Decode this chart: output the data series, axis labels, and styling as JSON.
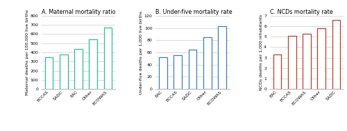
{
  "panel_A": {
    "title": "A. Maternal mortality ratio",
    "ylabel": "Maternal deaths per 100,000 live births",
    "categories": [
      "ECCAS",
      "SADC",
      "EAC",
      "Other",
      "ECOWAS"
    ],
    "values": [
      345,
      375,
      435,
      545,
      670
    ],
    "ylim": [
      0,
      800
    ],
    "yticks": [
      0,
      100,
      200,
      300,
      400,
      500,
      600,
      700,
      800
    ],
    "color": "#2abf8a"
  },
  "panel_B": {
    "title": "B. Under-five mortality rate",
    "ylabel": "Under-five deaths per 1,000 live births",
    "categories": [
      "EAC",
      "ECCAS",
      "SADC",
      "Other",
      "ECOWAS"
    ],
    "values": [
      52,
      56,
      64,
      85,
      103
    ],
    "ylim": [
      0,
      120
    ],
    "yticks": [
      0,
      20,
      40,
      60,
      80,
      100,
      120
    ],
    "color": "#3b7bc8"
  },
  "panel_C": {
    "title": "C. NCDs mortality rate",
    "ylabel": "NCDs deaths per 1,000 inhabitants",
    "categories": [
      "EAC",
      "ECCAS",
      "ECOWAS",
      "Other",
      "SADC"
    ],
    "values": [
      3.3,
      5.1,
      5.3,
      5.8,
      6.6
    ],
    "ylim": [
      0,
      7
    ],
    "yticks": [
      0,
      1,
      2,
      3,
      4,
      5,
      6,
      7
    ],
    "color": "#c0392b"
  },
  "background_color": "#ffffff",
  "bar_width": 0.55,
  "title_fontsize": 5.8,
  "label_fontsize": 4.5,
  "tick_fontsize": 4.5
}
